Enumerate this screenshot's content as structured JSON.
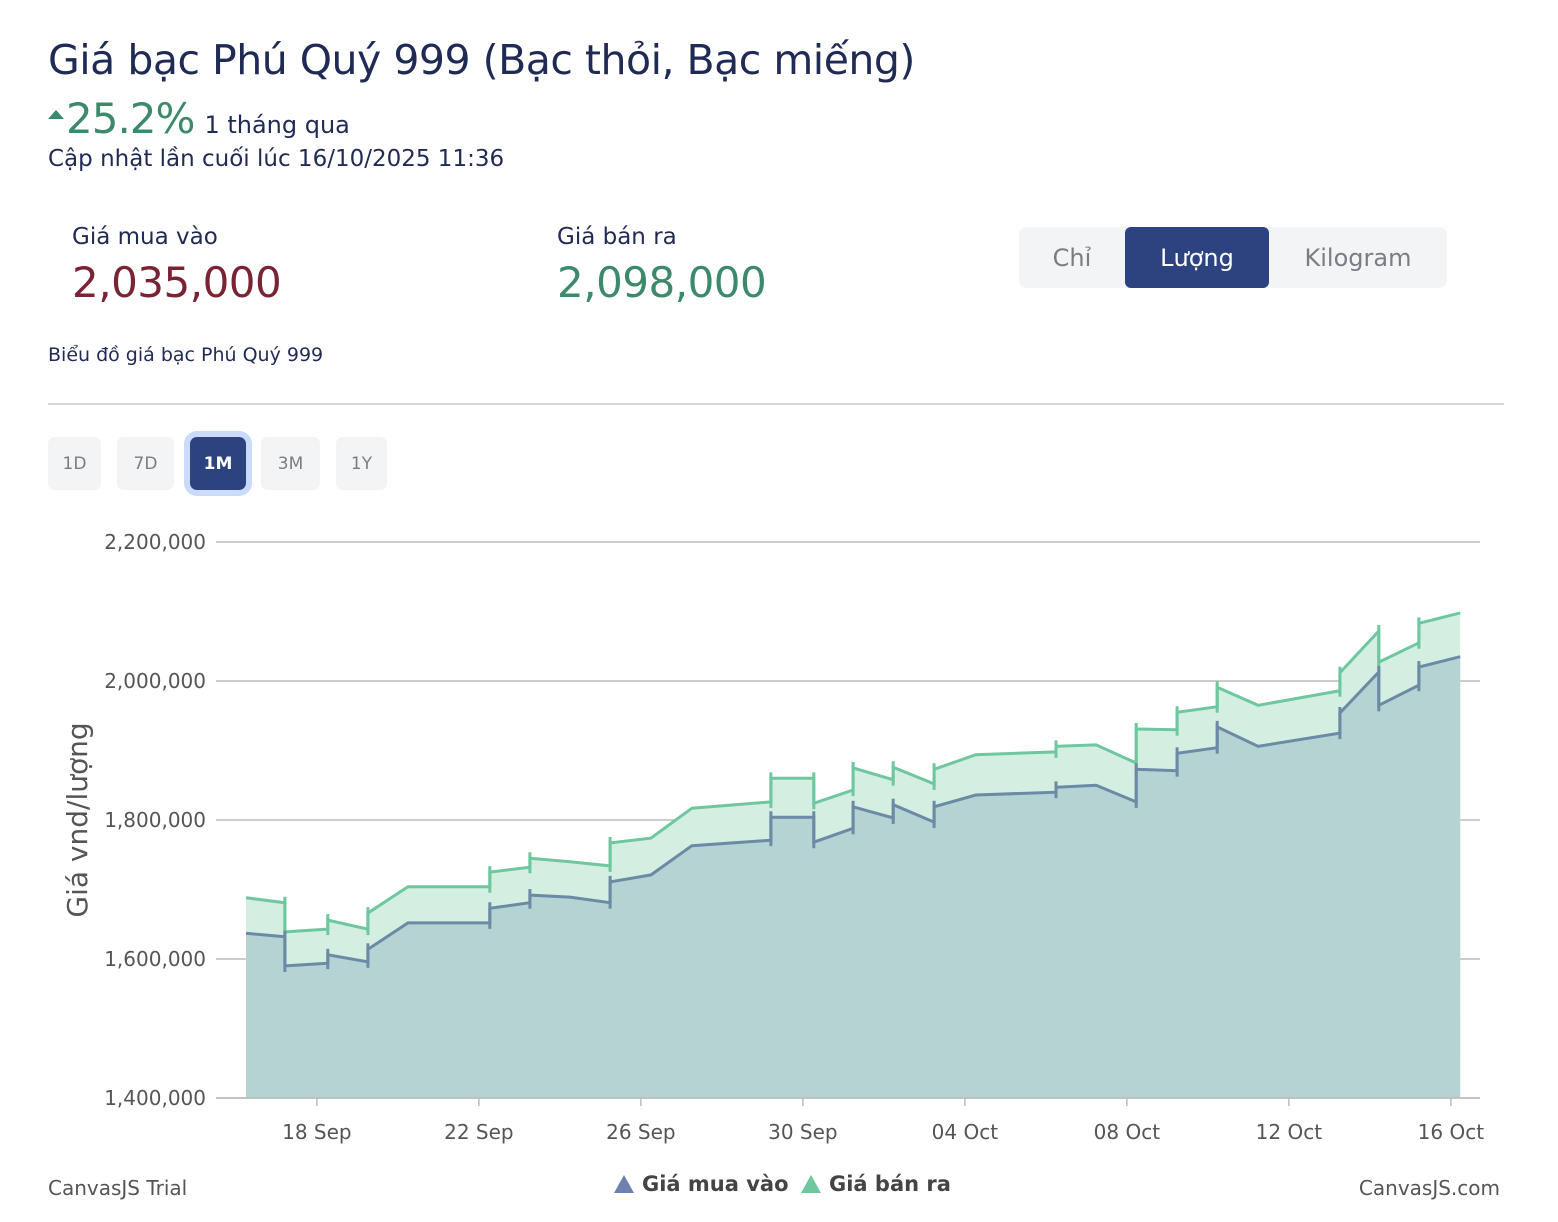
{
  "header": {
    "title": "Giá bạc Phú Quý 999 (Bạc thỏi, Bạc miếng)",
    "change_icon": "triangle-up-icon",
    "change_percent": "25.2%",
    "change_period": "1 tháng qua",
    "updated": "Cập nhật lần cuối lúc 16/10/2025 11:36"
  },
  "prices": {
    "buy_label": "Giá mua vào",
    "buy_value": "2,035,000",
    "sell_label": "Giá bán ra",
    "sell_value": "2,098,000"
  },
  "unit_toggle": {
    "options": [
      "Chỉ",
      "Lượng",
      "Kilogram"
    ],
    "selected": "Lượng"
  },
  "subtitle": "Biểu đồ giá bạc Phú Quý 999",
  "range_buttons": {
    "options": [
      "1D",
      "7D",
      "1M",
      "3M",
      "1Y"
    ],
    "selected": "1M"
  },
  "colors": {
    "buy_line": "#6c8aa6",
    "buy_fill": "#b5d3d3",
    "sell_line": "#6fc79e",
    "sell_fill": "#d4efe1",
    "accent": "#2d4380"
  },
  "chart_data": {
    "type": "area",
    "title": "",
    "ylabel": "Giá vnd/lượng",
    "xlabel": "",
    "x_unit": "day of 2025 counted from 1 Sep (day 31 = 1 Oct)",
    "value_multiplier": 1000,
    "ylim": [
      1400000,
      2200000
    ],
    "yticks": [
      1400000,
      1600000,
      1800000,
      2000000,
      2200000
    ],
    "ytick_labels": [
      "1,400,000",
      "1,600,000",
      "1,800,000",
      "2,000,000",
      "2,200,000"
    ],
    "xticks": [
      18,
      22,
      26,
      30,
      34,
      38,
      42,
      46
    ],
    "xtick_labels": [
      "18 Sep",
      "22 Sep",
      "26 Sep",
      "30 Sep",
      "04 Oct",
      "08 Oct",
      "12 Oct",
      "16 Oct"
    ],
    "grid": true,
    "legend_position": "bottom-center",
    "series": [
      {
        "name": "Giá bán ra",
        "points": [
          [
            16.25,
            1688
          ],
          [
            17.21,
            1681
          ],
          [
            17.21,
            1639
          ],
          [
            18.27,
            1643
          ],
          [
            18.27,
            1656
          ],
          [
            19.26,
            1643
          ],
          [
            19.26,
            1666
          ],
          [
            20.25,
            1704
          ],
          [
            22.27,
            1704
          ],
          [
            22.27,
            1725
          ],
          [
            23.26,
            1732
          ],
          [
            23.26,
            1745
          ],
          [
            24.25,
            1740
          ],
          [
            25.24,
            1734
          ],
          [
            25.24,
            1767
          ],
          [
            26.25,
            1774
          ],
          [
            27.26,
            1817
          ],
          [
            29.21,
            1826
          ],
          [
            29.21,
            1860
          ],
          [
            30.27,
            1860
          ],
          [
            30.27,
            1824
          ],
          [
            31.24,
            1843
          ],
          [
            31.24,
            1875
          ],
          [
            32.23,
            1858
          ],
          [
            32.23,
            1876
          ],
          [
            33.24,
            1852
          ],
          [
            33.24,
            1873
          ],
          [
            34.27,
            1894
          ],
          [
            36.25,
            1898
          ],
          [
            36.25,
            1906
          ],
          [
            37.24,
            1908
          ],
          [
            38.23,
            1882
          ],
          [
            38.23,
            1931
          ],
          [
            39.24,
            1930
          ],
          [
            39.24,
            1955
          ],
          [
            40.23,
            1963
          ],
          [
            40.23,
            1991
          ],
          [
            41.24,
            1965
          ],
          [
            43.26,
            1986
          ],
          [
            43.26,
            2012
          ],
          [
            44.22,
            2072
          ],
          [
            44.22,
            2027
          ],
          [
            45.21,
            2055
          ],
          [
            45.21,
            2083
          ],
          [
            46.23,
            2098
          ]
        ]
      },
      {
        "name": "Giá mua vào",
        "points": [
          [
            16.25,
            1637
          ],
          [
            17.21,
            1632
          ],
          [
            17.21,
            1590
          ],
          [
            18.27,
            1594
          ],
          [
            18.27,
            1606
          ],
          [
            19.26,
            1596
          ],
          [
            19.26,
            1614
          ],
          [
            20.25,
            1652
          ],
          [
            22.27,
            1652
          ],
          [
            22.27,
            1673
          ],
          [
            23.26,
            1681
          ],
          [
            23.26,
            1692
          ],
          [
            24.25,
            1689
          ],
          [
            25.24,
            1681
          ],
          [
            25.24,
            1711
          ],
          [
            26.25,
            1721
          ],
          [
            27.26,
            1763
          ],
          [
            29.21,
            1771
          ],
          [
            29.21,
            1804
          ],
          [
            30.27,
            1804
          ],
          [
            30.27,
            1768
          ],
          [
            31.24,
            1788
          ],
          [
            31.24,
            1819
          ],
          [
            32.23,
            1803
          ],
          [
            32.23,
            1822
          ],
          [
            33.24,
            1797
          ],
          [
            33.24,
            1819
          ],
          [
            34.27,
            1836
          ],
          [
            36.25,
            1840
          ],
          [
            36.25,
            1847
          ],
          [
            37.24,
            1850
          ],
          [
            38.23,
            1826
          ],
          [
            38.23,
            1873
          ],
          [
            39.24,
            1871
          ],
          [
            39.24,
            1896
          ],
          [
            40.23,
            1904
          ],
          [
            40.23,
            1934
          ],
          [
            41.24,
            1906
          ],
          [
            43.26,
            1925
          ],
          [
            43.26,
            1954
          ],
          [
            44.22,
            2013
          ],
          [
            44.22,
            1965
          ],
          [
            45.21,
            1994
          ],
          [
            45.21,
            2020
          ],
          [
            46.23,
            2035
          ]
        ]
      }
    ],
    "legend": [
      "Giá mua vào",
      "Giá bán ra"
    ]
  },
  "footer": {
    "left": "CanvasJS Trial",
    "right": "CanvasJS.com"
  }
}
